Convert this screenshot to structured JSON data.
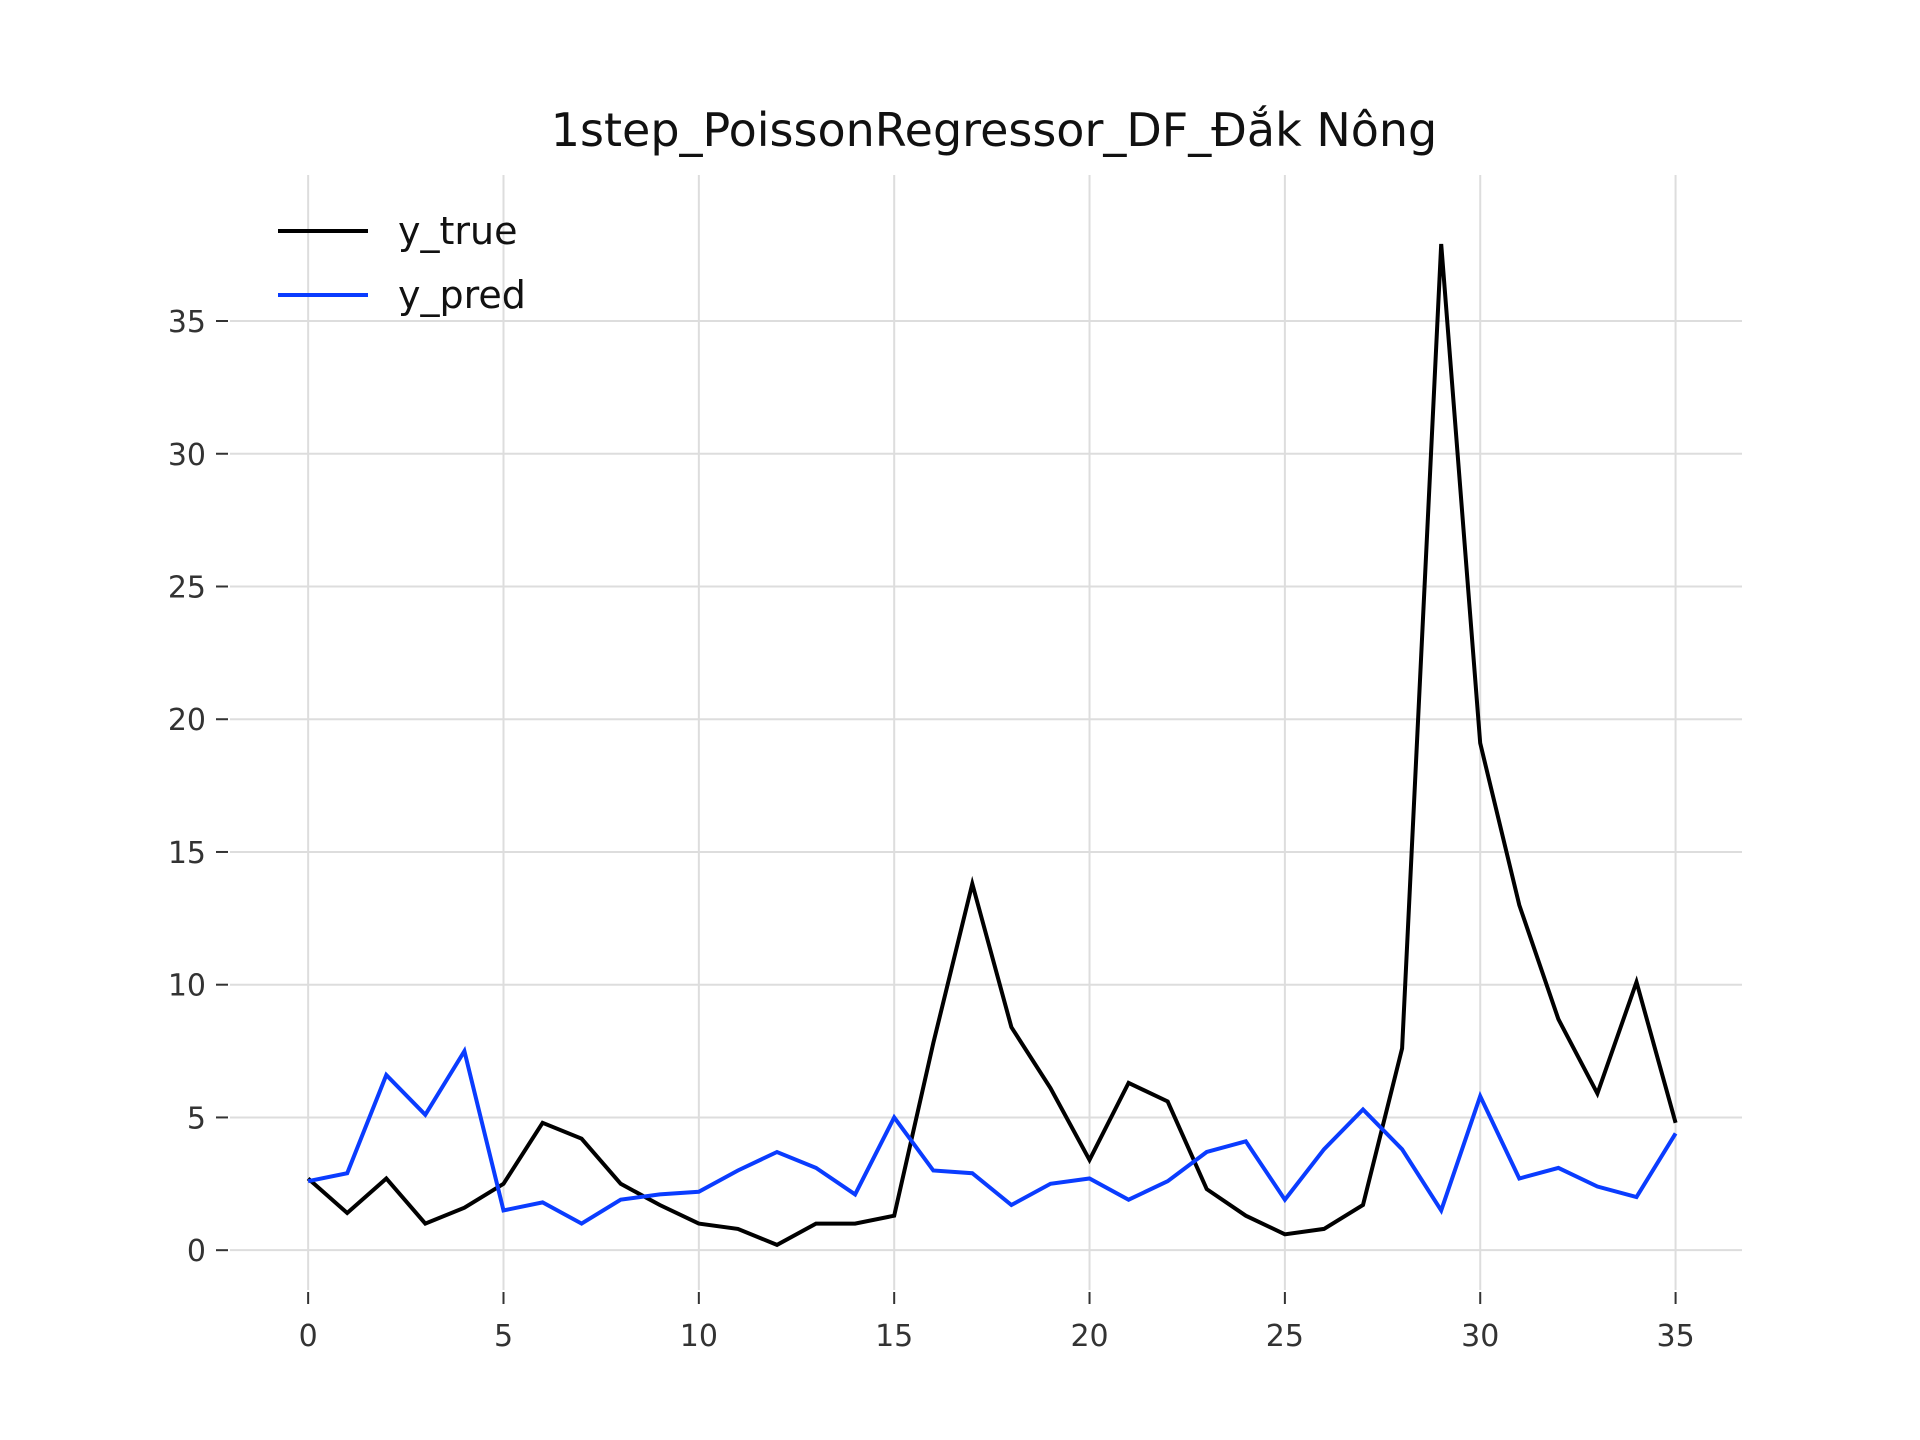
{
  "chart_data": {
    "type": "line",
    "title": "1step_PoissonRegressor_DF_Đắk Nông",
    "xlabel": "",
    "ylabel": "",
    "x": [
      0,
      1,
      2,
      3,
      4,
      5,
      6,
      7,
      8,
      9,
      10,
      11,
      12,
      13,
      14,
      15,
      16,
      17,
      18,
      19,
      20,
      21,
      22,
      23,
      24,
      25,
      26,
      27,
      28,
      29,
      30,
      31,
      32,
      33,
      34,
      35
    ],
    "xlim": [
      -2,
      36.7
    ],
    "ylim": [
      -1.5,
      40.5
    ],
    "xticks": [
      0,
      5,
      10,
      15,
      20,
      25,
      30,
      35
    ],
    "xtick_labels": [
      "0",
      "5",
      "10",
      "15",
      "20",
      "25",
      "30",
      "35"
    ],
    "yticks": [
      0,
      5,
      10,
      15,
      20,
      25,
      30,
      35
    ],
    "ytick_labels": [
      "0",
      "5",
      "10",
      "15",
      "20",
      "25",
      "30",
      "35"
    ],
    "grid": true,
    "legend_position": "top-left",
    "series": [
      {
        "name": "y_true",
        "color": "#000000",
        "values": [
          2.7,
          1.4,
          2.7,
          1.0,
          1.6,
          2.5,
          4.8,
          4.2,
          2.5,
          1.7,
          1.0,
          0.8,
          0.2,
          1.0,
          1.0,
          1.3,
          7.8,
          13.8,
          8.4,
          6.1,
          3.4,
          6.3,
          5.6,
          2.3,
          1.3,
          0.6,
          0.8,
          1.7,
          7.6,
          37.9,
          19.1,
          13.0,
          8.7,
          5.9,
          10.1,
          4.8
        ]
      },
      {
        "name": "y_pred",
        "color": "#0a3cff",
        "values": [
          2.6,
          2.9,
          6.6,
          5.1,
          7.5,
          1.5,
          1.8,
          1.0,
          1.9,
          2.1,
          2.2,
          3.0,
          3.7,
          3.1,
          2.1,
          5.0,
          3.0,
          2.9,
          1.7,
          2.5,
          2.7,
          1.9,
          2.6,
          3.7,
          4.1,
          1.9,
          3.8,
          5.3,
          3.8,
          1.5,
          5.8,
          2.7,
          3.1,
          2.4,
          2.0,
          4.4
        ]
      }
    ]
  }
}
